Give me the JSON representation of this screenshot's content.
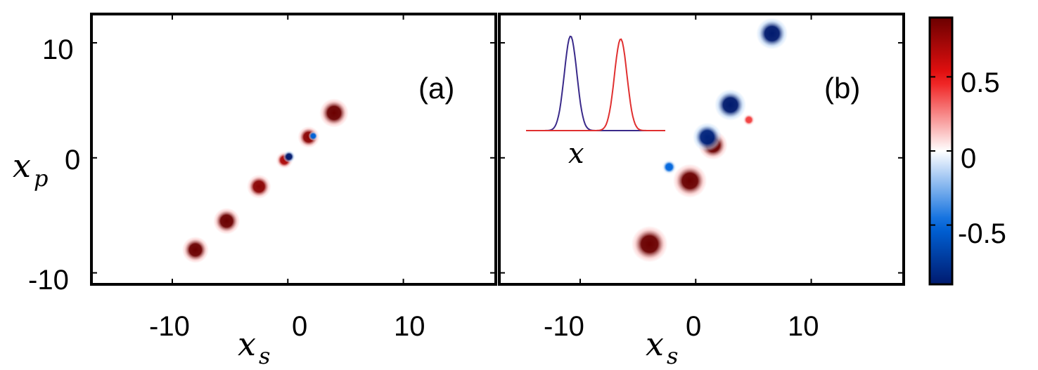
{
  "chart_data": [
    {
      "type": "heatmap",
      "panel_label": "(a)",
      "xlabel": "x",
      "xlabel_sub": "s",
      "ylabel": "x",
      "ylabel_sub": "p",
      "xlim": [
        -17,
        18
      ],
      "ylim": [
        -11,
        12.5
      ],
      "xticks": [
        -10,
        0,
        10
      ],
      "xtick_labels": [
        "-10",
        "0",
        "10"
      ],
      "yticks": [
        10,
        0,
        -10
      ],
      "ytick_labels": [
        "10",
        "0",
        "-10"
      ],
      "blobs": [
        {
          "x": -8.0,
          "y": -8.0,
          "value": 0.95,
          "sigma": 0.55
        },
        {
          "x": -5.3,
          "y": -5.5,
          "value": 0.95,
          "sigma": 0.55
        },
        {
          "x": -2.5,
          "y": -2.5,
          "value": 0.8,
          "sigma": 0.5
        },
        {
          "x": -0.3,
          "y": -0.2,
          "value": 0.7,
          "sigma": 0.35
        },
        {
          "x": 0.1,
          "y": 0.1,
          "value": -0.9,
          "sigma": 0.25
        },
        {
          "x": 1.8,
          "y": 1.8,
          "value": 0.8,
          "sigma": 0.45
        },
        {
          "x": 2.2,
          "y": 1.9,
          "value": -0.5,
          "sigma": 0.2
        },
        {
          "x": 4.0,
          "y": 3.9,
          "value": 0.95,
          "sigma": 0.6
        }
      ]
    },
    {
      "type": "heatmap",
      "panel_label": "(b)",
      "xlabel": "x",
      "xlabel_sub": "s",
      "xlim": [
        -17,
        18
      ],
      "ylim": [
        -11,
        12.5
      ],
      "xticks": [
        -10,
        0,
        10
      ],
      "xtick_labels": [
        "-10",
        "0",
        "10"
      ],
      "blobs": [
        {
          "x": -4.0,
          "y": -7.5,
          "value": 0.95,
          "sigma": 0.75
        },
        {
          "x": -0.5,
          "y": -2.0,
          "value": 0.95,
          "sigma": 0.7
        },
        {
          "x": -2.3,
          "y": -0.8,
          "value": -0.5,
          "sigma": 0.3
        },
        {
          "x": 1.5,
          "y": 1.1,
          "value": 0.9,
          "sigma": 0.6
        },
        {
          "x": 1.0,
          "y": 1.8,
          "value": -0.85,
          "sigma": 0.6
        },
        {
          "x": 3.0,
          "y": 4.6,
          "value": -0.95,
          "sigma": 0.65
        },
        {
          "x": 4.6,
          "y": 3.3,
          "value": 0.4,
          "sigma": 0.25
        },
        {
          "x": 6.6,
          "y": 10.8,
          "value": -0.95,
          "sigma": 0.65
        }
      ],
      "inset": {
        "type": "line",
        "xlabel": "x",
        "series": [
          {
            "name": "blue",
            "color": "#3a2a8a",
            "center": -3.6,
            "width": 0.9,
            "amplitude": 1.0
          },
          {
            "name": "red",
            "color": "#e03030",
            "center": 3.6,
            "width": 0.9,
            "amplitude": 0.97
          }
        ],
        "xlim": [
          -10,
          10
        ],
        "ylim": [
          0,
          1.1
        ]
      }
    },
    {
      "type": "colorbar",
      "range": [
        -0.9,
        0.9
      ],
      "ticks": [
        0.5,
        0,
        -0.5
      ],
      "tick_labels": [
        "0.5",
        "0",
        "-0.5"
      ],
      "colors": {
        "low": "#001a6e",
        "mid_low": "#0066dd",
        "zero": "#ffffff",
        "mid_high": "#ee1111",
        "high": "#6b0000"
      }
    }
  ]
}
